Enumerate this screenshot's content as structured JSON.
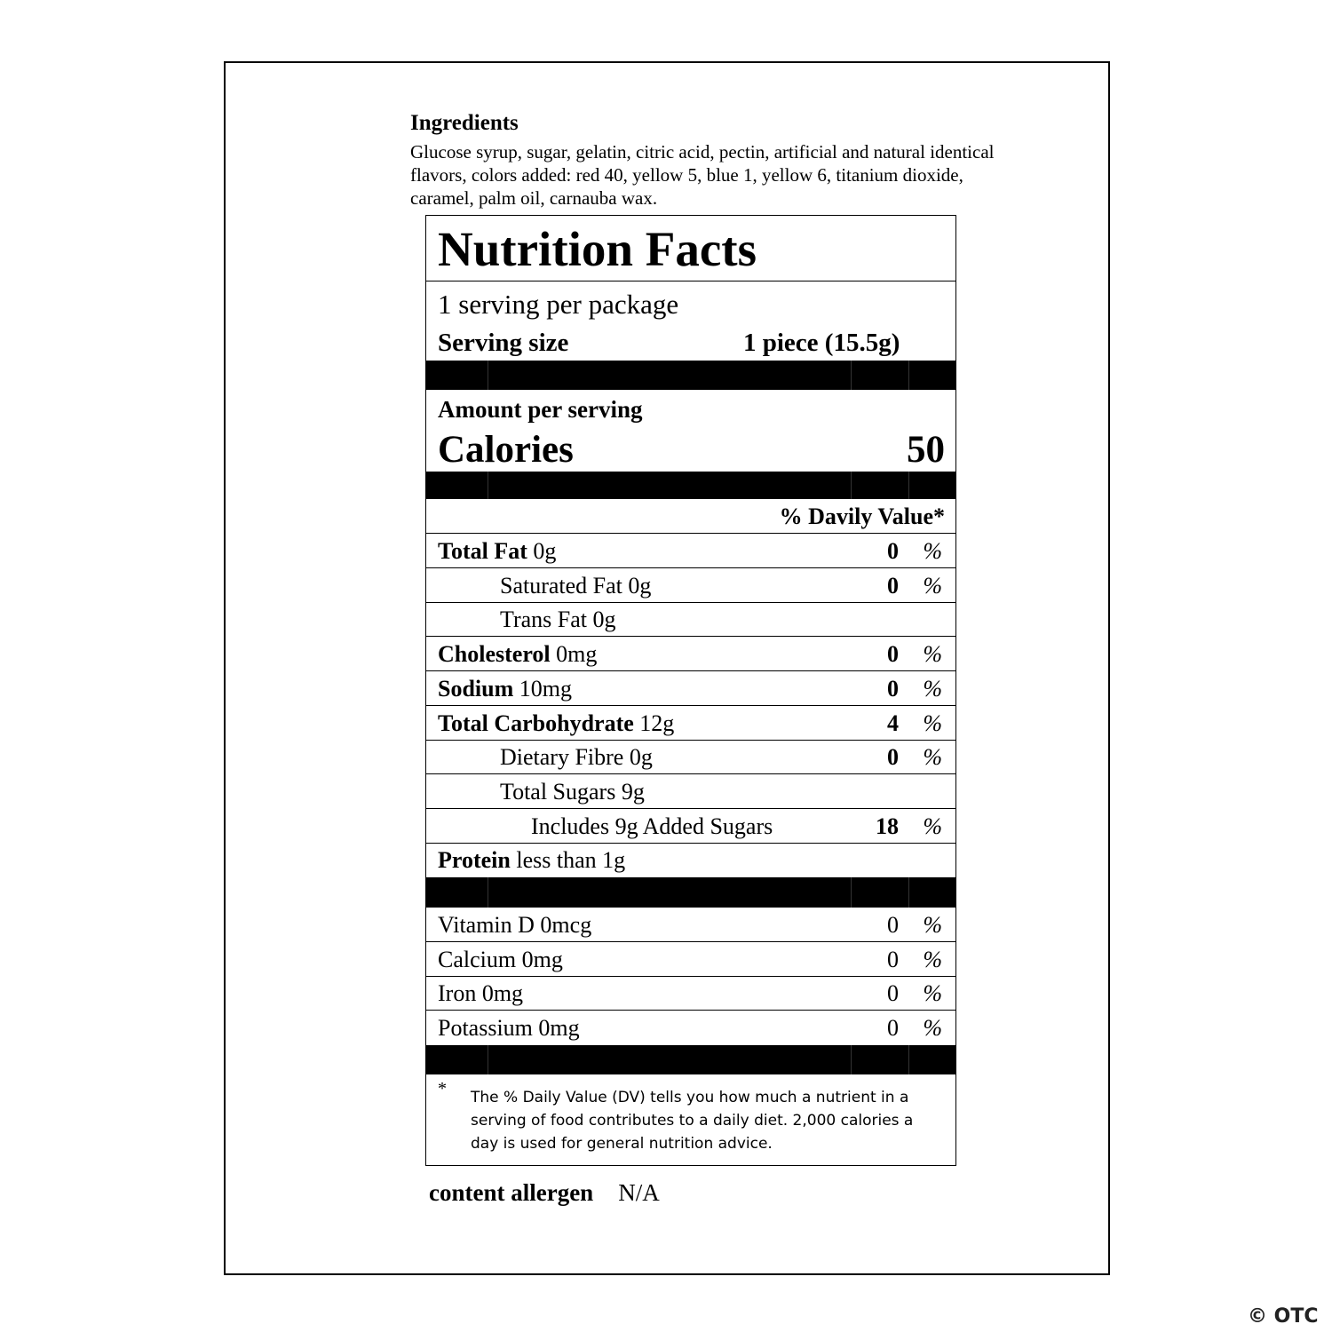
{
  "ingredients": {
    "title": "Ingredients",
    "text": "Glucose syrup, sugar, gelatin, citric acid, pectin, artificial and natural identical flavors, colors added: red 40, yellow 5, blue 1, yellow 6, titanium dioxide, caramel, palm oil, carnauba wax."
  },
  "label": {
    "title": "Nutrition Facts",
    "servings_per_package": "1 serving per package",
    "serving_size_label": "Serving size",
    "serving_size_value": "1 piece (15.5g)",
    "amount_per_serving": "Amount per serving",
    "calories_label": "Calories",
    "calories_value": "50",
    "dv_header": "% Davily Value*",
    "nutrients": [
      {
        "name": "Total Fat",
        "amount": "0g",
        "dv": "0",
        "pct": "%"
      },
      {
        "name": "Saturated Fat 0g",
        "amount": "",
        "dv": "0",
        "pct": "%"
      },
      {
        "name": "Trans Fat 0g",
        "amount": "",
        "dv": "",
        "pct": ""
      },
      {
        "name": "Cholesterol",
        "amount": "0mg",
        "dv": "0",
        "pct": "%"
      },
      {
        "name": "Sodium",
        "amount": "10mg",
        "dv": "0",
        "pct": "%"
      },
      {
        "name": "Total Carbohydrate",
        "amount": "12g",
        "dv": "4",
        "pct": "%"
      },
      {
        "name": "Dietary Fibre 0g",
        "amount": "",
        "dv": "0",
        "pct": "%"
      },
      {
        "name": "Total Sugars 9g",
        "amount": "",
        "dv": "",
        "pct": ""
      },
      {
        "name": "Includes 9g Added Sugars",
        "amount": "",
        "dv": "18",
        "pct": "%"
      },
      {
        "name": "Protein",
        "amount": "less than 1g",
        "dv": "",
        "pct": ""
      }
    ],
    "vitamins": [
      {
        "name": "Vitamin D 0mcg",
        "dv": "0",
        "pct": "%"
      },
      {
        "name": "Calcium 0mg",
        "dv": "0",
        "pct": "%"
      },
      {
        "name": "Iron 0mg",
        "dv": "0",
        "pct": "%"
      },
      {
        "name": "Potassium 0mg",
        "dv": "0",
        "pct": "%"
      }
    ],
    "footnote_marker": "*",
    "footnote": "The % Daily Value (DV) tells you how much a nutrient in a serving of food contributes to a daily diet. 2,000 calories a day is used for general nutrition advice."
  },
  "allergen": {
    "label": "content allergen",
    "value": "N/A"
  },
  "watermark": "© OTC"
}
